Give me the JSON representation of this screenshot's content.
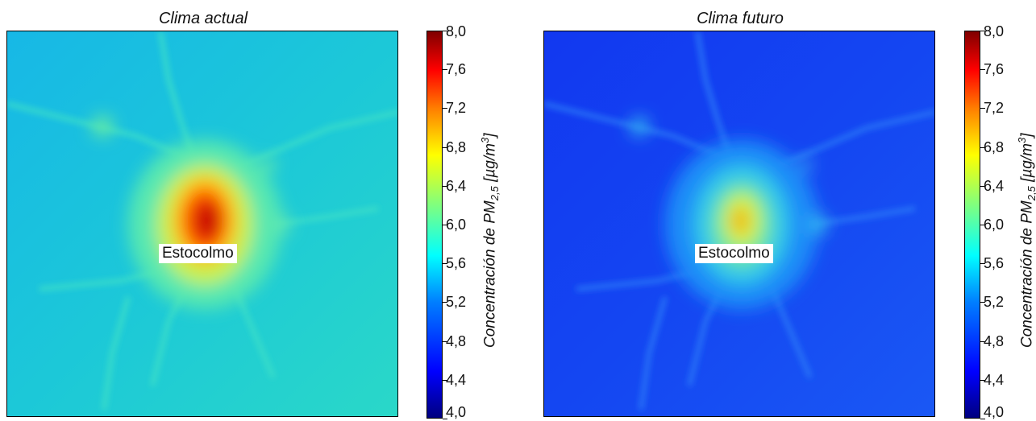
{
  "panels": [
    {
      "title": "Clima actual",
      "city_label": "Estocolmo"
    },
    {
      "title": "Clima futuro",
      "city_label": "Estocolmo"
    }
  ],
  "colorbar": {
    "label_prefix": "Concentración de PM",
    "label_sub": "2,5",
    "label_unit_open": " [µg/m",
    "label_unit_sup": "3",
    "label_unit_close": "]",
    "ticks": [
      "4,0",
      "4,4",
      "4,8",
      "5,2",
      "5,6",
      "6,0",
      "6,4",
      "6,8",
      "7,2",
      "7,6",
      "8,0"
    ],
    "range": [
      4.0,
      8.0
    ],
    "colormap": "jet"
  },
  "chart_data": [
    {
      "type": "heatmap",
      "title": "Clima actual",
      "annotation": "Estocolmo",
      "value_range": [
        4.0,
        8.0
      ],
      "background_level": 5.6,
      "peak_level": 8.0,
      "colors": {
        "background": "#16c6d8",
        "peak": "#c00000"
      }
    },
    {
      "type": "heatmap",
      "title": "Clima futuro",
      "annotation": "Estocolmo",
      "value_range": [
        4.0,
        8.0
      ],
      "background_level": 4.9,
      "peak_level": 6.8,
      "colors": {
        "background": "#1446f2",
        "peak": "#f0b000"
      }
    }
  ]
}
